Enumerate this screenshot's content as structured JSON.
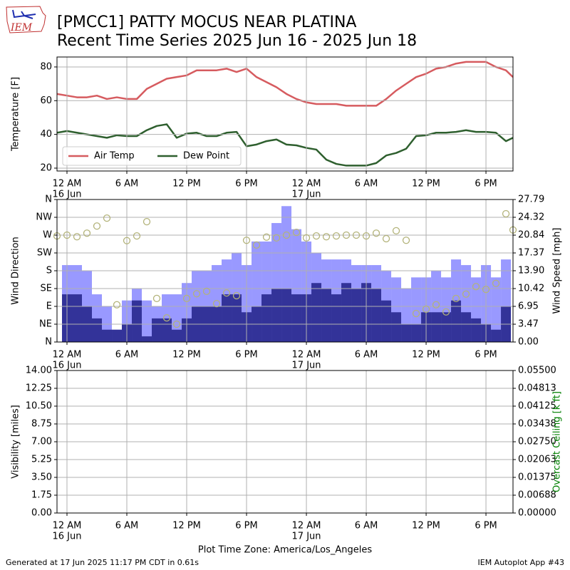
{
  "header": {
    "logo": "IEM",
    "title": [
      "[PMCC1] PATTY MOCUS NEAR PLATINA",
      "Recent Time Series 2025 Jun 16 - 2025 Jun 18"
    ]
  },
  "footer": {
    "left": "Generated at 17 Jun 2025 11:17 PM CDT in 0.61s",
    "right": "IEM Autoplot App #43"
  },
  "chart_data": [
    {
      "type": "line",
      "ylabel": "Temperature [F]",
      "grid": true,
      "legend": "lower left",
      "xlim": [
        -1,
        44.71
      ],
      "ylim": [
        18.3,
        85.9
      ],
      "yticks": [
        20,
        40,
        60,
        80
      ],
      "xticks": [
        {
          "value": 0,
          "label": "12 AM"
        },
        {
          "value": 6,
          "label": "6 AM"
        },
        {
          "value": 12,
          "label": "12 PM"
        },
        {
          "value": 18,
          "label": "6 PM"
        },
        {
          "value": 24,
          "label": "12 AM"
        },
        {
          "value": 30,
          "label": "6 AM"
        },
        {
          "value": 36,
          "label": "12 PM"
        },
        {
          "value": 42,
          "label": "6 PM"
        }
      ],
      "xtick_dates": [
        {
          "value": 0,
          "label": "16 Jun"
        },
        {
          "value": 24,
          "label": "17 Jun"
        }
      ],
      "x": [
        -1,
        0,
        1,
        2,
        3,
        4,
        5,
        6,
        7,
        8,
        9,
        10,
        11,
        12,
        13,
        14,
        15,
        16,
        17,
        18,
        19,
        20,
        21,
        22,
        23,
        24,
        25,
        26,
        27,
        28,
        29,
        30,
        31,
        32,
        33,
        34,
        35,
        36,
        37,
        38,
        39,
        40,
        41,
        42,
        43,
        44,
        44.71
      ],
      "series": [
        {
          "name": "Air Temp",
          "color": "#d65b5f",
          "values": [
            64,
            63,
            62,
            62,
            63,
            61,
            62,
            61,
            61,
            67,
            70,
            73,
            74,
            75,
            78,
            78,
            78,
            79,
            77,
            79,
            74,
            71,
            68,
            64,
            61,
            59,
            58,
            58,
            58,
            57,
            57,
            57,
            57,
            61,
            66,
            70,
            74,
            76,
            79,
            80,
            82,
            83,
            83,
            83,
            80,
            78,
            74
          ]
        },
        {
          "name": "Dew Point",
          "color": "#2e5f2e",
          "values": [
            41,
            42,
            41,
            40,
            39,
            38,
            39.5,
            39,
            39,
            42.5,
            45,
            46,
            38,
            40.5,
            41,
            39,
            39,
            41,
            41.5,
            33,
            34,
            36,
            37,
            34,
            33.5,
            32,
            31,
            25,
            22.5,
            21.5,
            21.5,
            21.5,
            23,
            27.5,
            29,
            31.5,
            39,
            39.5,
            41,
            41,
            41.5,
            42.5,
            41.5,
            41.5,
            41,
            36,
            38
          ]
        }
      ]
    },
    {
      "type": "bar",
      "ylabel": "Wind Direction",
      "y2label": "Wind Speed [mph]",
      "grid": true,
      "xlim": [
        -1,
        44.71
      ],
      "ylim": [
        0,
        360
      ],
      "yticks": [
        {
          "value": 0,
          "label": "N"
        },
        {
          "value": 45,
          "label": "NE"
        },
        {
          "value": 90,
          "label": "E"
        },
        {
          "value": 135,
          "label": "SE"
        },
        {
          "value": 180,
          "label": "S"
        },
        {
          "value": 225,
          "label": "SW"
        },
        {
          "value": 270,
          "label": "W"
        },
        {
          "value": 315,
          "label": "NW"
        },
        {
          "value": 360,
          "label": "N"
        }
      ],
      "y2lim": [
        0,
        27.79
      ],
      "y2ticks": [
        {
          "value": 0,
          "label": "0.00"
        },
        3.47,
        6.95,
        10.42,
        {
          "value": 13.9,
          "label": "13.90"
        },
        17.37,
        20.84,
        24.32,
        27.79
      ],
      "xticks": [
        {
          "value": 0,
          "label": "12 AM"
        },
        {
          "value": 6,
          "label": "6 AM"
        },
        {
          "value": 12,
          "label": "12 PM"
        },
        {
          "value": 18,
          "label": "6 PM"
        },
        {
          "value": 24,
          "label": "12 AM"
        },
        {
          "value": 30,
          "label": "6 AM"
        },
        {
          "value": 36,
          "label": "12 PM"
        },
        {
          "value": 42,
          "label": "6 PM"
        }
      ],
      "xtick_dates": [
        {
          "value": 0,
          "label": "16 Jun"
        },
        {
          "value": 24,
          "label": "17 Jun"
        }
      ],
      "series": [
        {
          "type": "bar",
          "axis": "y2",
          "color": "#9999ff",
          "x": [
            0,
            1,
            2,
            3,
            4,
            5,
            6,
            7,
            8,
            9,
            10,
            11,
            12,
            13,
            14,
            15,
            16,
            17,
            18,
            19,
            20,
            21,
            22,
            23,
            24,
            25,
            26,
            27,
            28,
            29,
            30,
            31,
            32,
            33,
            34,
            35,
            36,
            37,
            38,
            39,
            40,
            41,
            42,
            43,
            44
          ],
          "values": [
            15.0,
            15.0,
            13.9,
            9.3,
            6.9,
            2.4,
            8.1,
            10.4,
            8.1,
            6.9,
            9.3,
            9.3,
            11.5,
            13.9,
            13.9,
            15.0,
            16.1,
            17.4,
            15.0,
            19.6,
            19.6,
            23.2,
            26.5,
            22.0,
            19.6,
            17.4,
            16.1,
            16.1,
            16.1,
            15.0,
            15.0,
            15.0,
            13.9,
            12.6,
            10.4,
            12.6,
            12.6,
            13.9,
            12.6,
            16.1,
            15.0,
            12.6,
            15.0,
            12.6,
            16.1
          ]
        },
        {
          "type": "bar",
          "axis": "y2",
          "color": "#333399",
          "x": [
            0,
            1,
            2,
            3,
            4,
            5,
            6,
            7,
            8,
            9,
            10,
            11,
            12,
            13,
            14,
            15,
            16,
            17,
            18,
            19,
            20,
            21,
            22,
            23,
            24,
            25,
            26,
            27,
            28,
            29,
            30,
            31,
            32,
            33,
            34,
            35,
            36,
            37,
            38,
            39,
            40,
            41,
            42,
            43,
            44
          ],
          "values": [
            9.3,
            9.3,
            6.9,
            4.6,
            2.4,
            2.4,
            3.5,
            8.1,
            1.1,
            4.6,
            4.6,
            2.4,
            4.6,
            6.9,
            6.9,
            6.9,
            9.3,
            9.3,
            5.8,
            6.9,
            9.3,
            10.4,
            10.4,
            9.3,
            9.3,
            11.5,
            10.4,
            9.3,
            11.5,
            10.4,
            11.5,
            10.4,
            8.1,
            5.8,
            3.5,
            3.5,
            5.8,
            5.8,
            5.8,
            8.1,
            5.8,
            4.6,
            3.5,
            2.4,
            6.9
          ]
        },
        {
          "type": "scatter",
          "axis": "y",
          "color": "#b3b37a",
          "x": [
            -1,
            0,
            1,
            2,
            3,
            4,
            5,
            6,
            7,
            8,
            9,
            10,
            11,
            12,
            13,
            14,
            15,
            16,
            17,
            18,
            19,
            20,
            21,
            22,
            23,
            24,
            25,
            26,
            27,
            28,
            29,
            30,
            31,
            32,
            33,
            34,
            35,
            36,
            37,
            38,
            39,
            40,
            41,
            42,
            43,
            44,
            44.71
          ],
          "values": [
            268,
            270,
            266,
            275,
            293,
            313,
            94,
            256,
            268,
            304,
            110,
            61,
            45,
            110,
            122,
            128,
            97,
            124,
            117,
            257,
            245,
            265,
            263,
            270,
            277,
            263,
            268,
            266,
            268,
            270,
            270,
            268,
            275,
            261,
            281,
            257,
            72,
            83,
            94,
            76,
            110,
            121,
            140,
            133,
            148,
            324,
            283
          ]
        }
      ]
    },
    {
      "type": "line",
      "ylabel": "Visibility [miles]",
      "y2label": "Overcast Ceiling [k ft]",
      "y2label_color": "#008000",
      "grid": true,
      "xlim": [
        -1,
        44.71
      ],
      "ylim": [
        0,
        14
      ],
      "yticks": [
        {
          "value": 0,
          "label": "0.00"
        },
        1.75,
        {
          "value": 3.5,
          "label": "3.50"
        },
        5.25,
        {
          "value": 7,
          "label": "7.00"
        },
        8.75,
        {
          "value": 10.5,
          "label": "10.50"
        },
        12.25,
        {
          "value": 14,
          "label": "14.00"
        }
      ],
      "y2lim": [
        0,
        0.055
      ],
      "y2ticks": [
        {
          "value": 0,
          "label": "0.00000"
        },
        {
          "value": 0.006875,
          "label": "0.00688"
        },
        {
          "value": 0.01375,
          "label": "0.01375"
        },
        {
          "value": 0.020625,
          "label": "0.02063"
        },
        {
          "value": 0.0275,
          "label": "0.02750"
        },
        {
          "value": 0.034375,
          "label": "0.03438"
        },
        {
          "value": 0.04125,
          "label": "0.04125"
        },
        {
          "value": 0.048125,
          "label": "0.04813"
        },
        {
          "value": 0.055,
          "label": "0.05500"
        }
      ],
      "xticks": [
        {
          "value": 0,
          "label": "12 AM"
        },
        {
          "value": 6,
          "label": "6 AM"
        },
        {
          "value": 12,
          "label": "12 PM"
        },
        {
          "value": 18,
          "label": "6 PM"
        },
        {
          "value": 24,
          "label": "12 AM"
        },
        {
          "value": 30,
          "label": "6 AM"
        },
        {
          "value": 36,
          "label": "12 PM"
        },
        {
          "value": 42,
          "label": "6 PM"
        }
      ],
      "xtick_dates": [
        {
          "value": 0,
          "label": "16 Jun"
        },
        {
          "value": 24,
          "label": "17 Jun"
        }
      ],
      "xlabel": "Plot Time Zone: America/Los_Angeles"
    }
  ]
}
